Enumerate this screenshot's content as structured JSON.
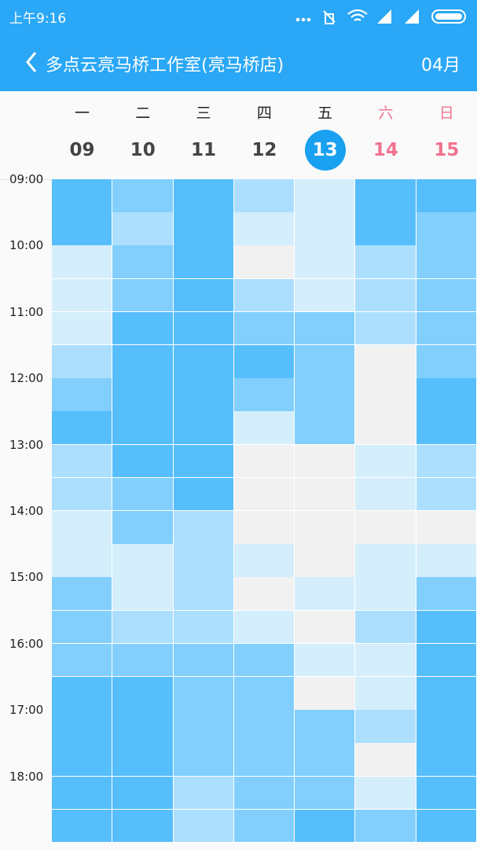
{
  "status_bar": {
    "time": "上午9:16"
  },
  "header": {
    "title": "多点云亮马桥工作室(亮马桥店)",
    "month": "04月"
  },
  "days": [
    {
      "weekday": "一",
      "date": "09"
    },
    {
      "weekday": "二",
      "date": "10"
    },
    {
      "weekday": "三",
      "date": "11"
    },
    {
      "weekday": "四",
      "date": "12"
    },
    {
      "weekday": "五",
      "date": "13"
    },
    {
      "weekday": "六",
      "date": "14"
    },
    {
      "weekday": "日",
      "date": "15"
    }
  ],
  "times": [
    "09:00",
    "10:00",
    "11:00",
    "12:00",
    "13:00",
    "14:00",
    "15:00",
    "16:00",
    "17:00",
    "18:00"
  ]
}
